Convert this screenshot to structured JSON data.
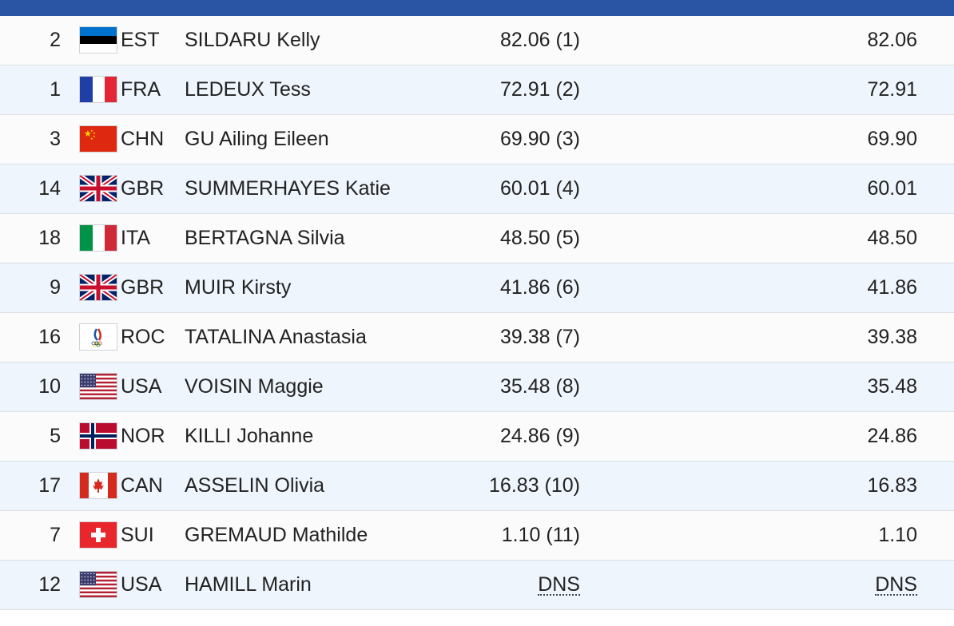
{
  "rows": [
    {
      "bib": "2",
      "noc": "EST",
      "name": "SILDARU Kelly",
      "score": "82.06 (1)",
      "total": "82.06",
      "flag": "est-flag"
    },
    {
      "bib": "1",
      "noc": "FRA",
      "name": "LEDEUX Tess",
      "score": "72.91 (2)",
      "total": "72.91",
      "flag": "fra-flag"
    },
    {
      "bib": "3",
      "noc": "CHN",
      "name": "GU Ailing Eileen",
      "score": "69.90 (3)",
      "total": "69.90",
      "flag": "chn-flag"
    },
    {
      "bib": "14",
      "noc": "GBR",
      "name": "SUMMERHAYES Katie",
      "score": "60.01 (4)",
      "total": "60.01",
      "flag": "gbr-flag"
    },
    {
      "bib": "18",
      "noc": "ITA",
      "name": "BERTAGNA Silvia",
      "score": "48.50 (5)",
      "total": "48.50",
      "flag": "ita-flag"
    },
    {
      "bib": "9",
      "noc": "GBR",
      "name": "MUIR Kirsty",
      "score": "41.86 (6)",
      "total": "41.86",
      "flag": "gbr-flag"
    },
    {
      "bib": "16",
      "noc": "ROC",
      "name": "TATALINA Anastasia",
      "score": "39.38 (7)",
      "total": "39.38",
      "flag": "roc-flag"
    },
    {
      "bib": "10",
      "noc": "USA",
      "name": "VOISIN Maggie",
      "score": "35.48 (8)",
      "total": "35.48",
      "flag": "usa-flag"
    },
    {
      "bib": "5",
      "noc": "NOR",
      "name": "KILLI Johanne",
      "score": "24.86 (9)",
      "total": "24.86",
      "flag": "nor-flag"
    },
    {
      "bib": "17",
      "noc": "CAN",
      "name": "ASSELIN Olivia",
      "score": "16.83 (10)",
      "total": "16.83",
      "flag": "can-flag"
    },
    {
      "bib": "7",
      "noc": "SUI",
      "name": "GREMAUD Mathilde",
      "score": "1.10 (11)",
      "total": "1.10",
      "flag": "sui-flag"
    },
    {
      "bib": "12",
      "noc": "USA",
      "name": "HAMILL Marin",
      "score": "DNS",
      "total": "DNS",
      "flag": "usa-flag"
    }
  ],
  "colors": {
    "header_bar": "#2a55a4",
    "row_odd": "#fbfbfb",
    "row_even": "#eef5fc"
  }
}
